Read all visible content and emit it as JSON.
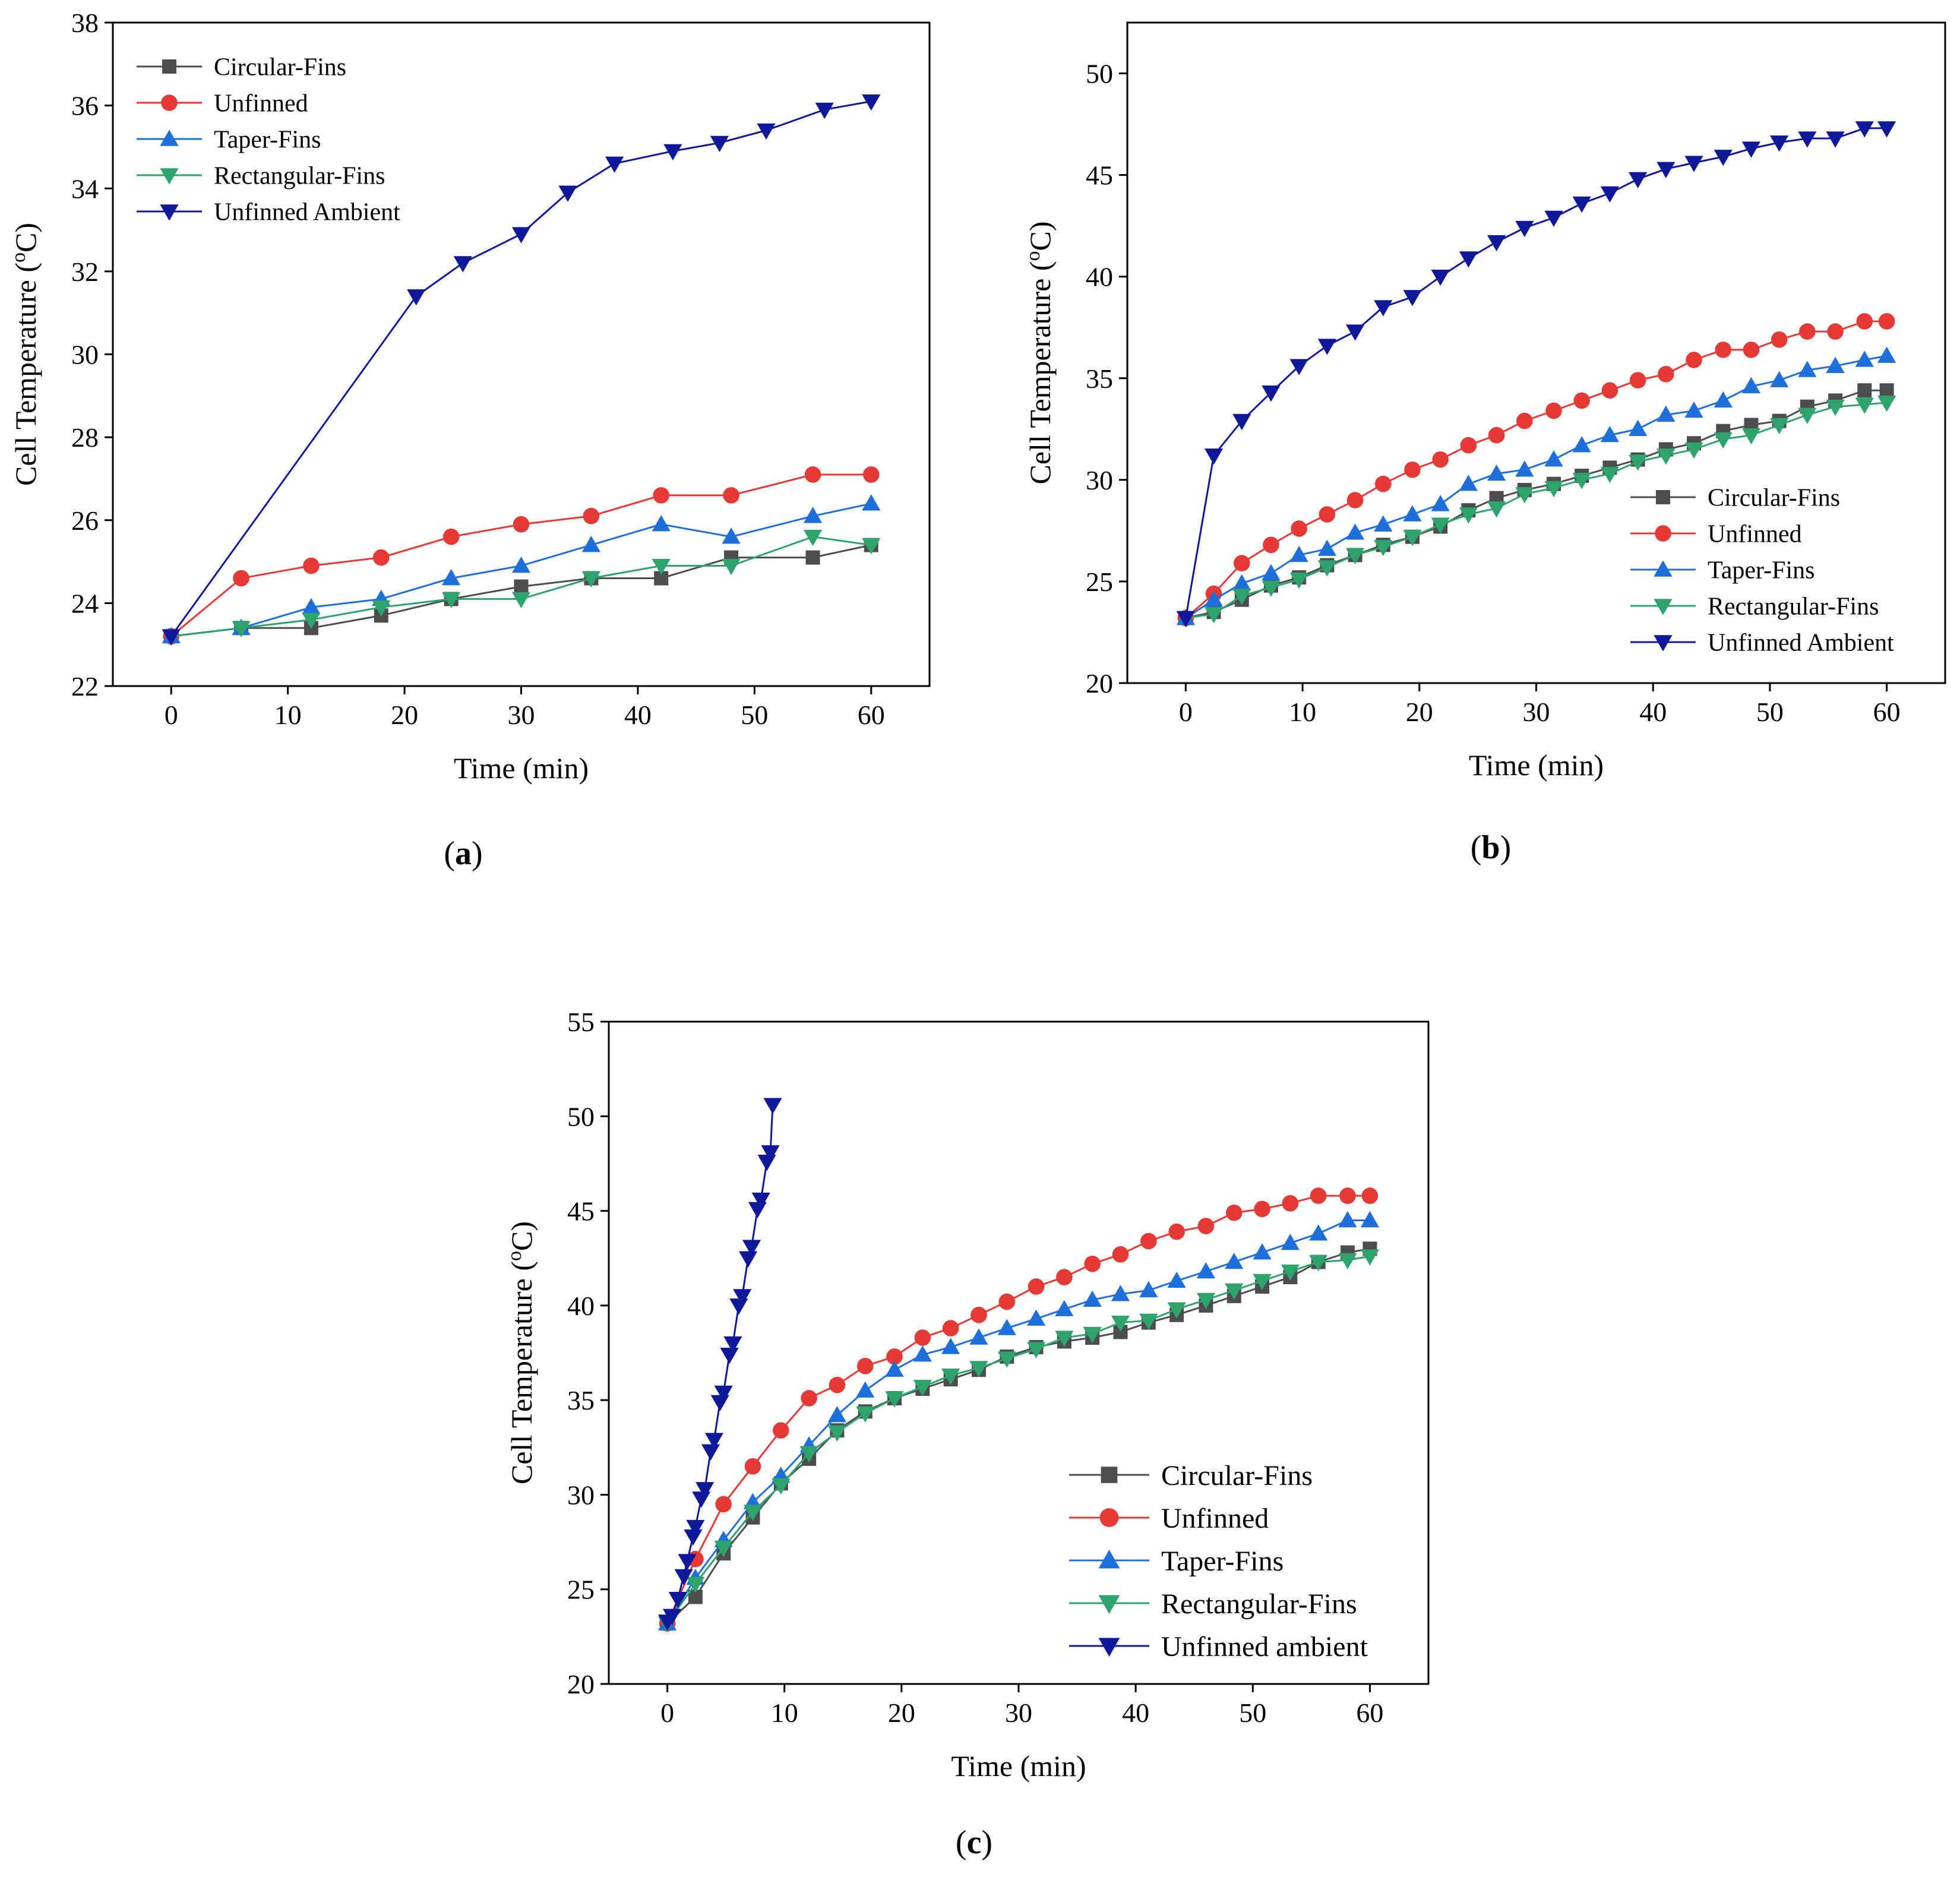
{
  "figure": {
    "series_styles": [
      {
        "name": "Circular-Fins",
        "color": "#4d4d4d",
        "marker": "square"
      },
      {
        "name": "Unfinned",
        "color": "#e53935",
        "marker": "circle"
      },
      {
        "name": "Taper-Fins",
        "color": "#1e6fd9",
        "marker": "triangle-up"
      },
      {
        "name": "Rectangular-Fins",
        "color": "#2ea36b",
        "marker": "triangle-down"
      },
      {
        "name": "Unfinned Ambient",
        "color": "#10189a",
        "marker": "triangle-down"
      }
    ]
  },
  "chart_data": [
    {
      "id": "a",
      "caption_letter": "a",
      "type": "line",
      "xlabel": "Time (min)",
      "ylabel_prefix": "Cell Temperature (",
      "ylabel_sup": "o",
      "ylabel_suffix": "C)",
      "xlim": [
        -5,
        65
      ],
      "ylim": [
        22,
        38
      ],
      "xticks": [
        0,
        10,
        20,
        30,
        40,
        50,
        60
      ],
      "yticks": [
        22,
        24,
        26,
        28,
        30,
        32,
        34,
        36,
        38
      ],
      "legend_position": "top-left",
      "series": [
        {
          "name": "Circular-Fins",
          "x": [
            0,
            6,
            12,
            18,
            24,
            30,
            36,
            42,
            48,
            55,
            60
          ],
          "y": [
            23.2,
            23.4,
            23.4,
            23.7,
            24.1,
            24.4,
            24.6,
            24.6,
            25.1,
            25.1,
            25.4
          ]
        },
        {
          "name": "Unfinned",
          "x": [
            0,
            6,
            12,
            18,
            24,
            30,
            36,
            42,
            48,
            55,
            60
          ],
          "y": [
            23.2,
            24.6,
            24.9,
            25.1,
            25.6,
            25.9,
            26.1,
            26.6,
            26.6,
            27.1,
            27.1
          ]
        },
        {
          "name": "Taper-Fins",
          "x": [
            0,
            6,
            12,
            18,
            24,
            30,
            36,
            42,
            48,
            55,
            60
          ],
          "y": [
            23.2,
            23.4,
            23.9,
            24.1,
            24.6,
            24.9,
            25.4,
            25.9,
            25.6,
            26.1,
            26.4
          ]
        },
        {
          "name": "Rectangular-Fins",
          "x": [
            0,
            6,
            12,
            18,
            24,
            30,
            36,
            42,
            48,
            55,
            60
          ],
          "y": [
            23.2,
            23.4,
            23.6,
            23.9,
            24.1,
            24.1,
            24.6,
            24.9,
            24.9,
            25.6,
            25.4
          ]
        },
        {
          "name": "Unfinned Ambient",
          "x": [
            0,
            21,
            25,
            30,
            34,
            38,
            43,
            47,
            51,
            56,
            60
          ],
          "y": [
            23.2,
            31.4,
            32.2,
            32.9,
            33.9,
            34.6,
            34.9,
            35.1,
            35.4,
            35.9,
            36.1
          ]
        }
      ]
    },
    {
      "id": "b",
      "caption_letter": "b",
      "type": "line",
      "xlabel": "Time (min)",
      "ylabel_prefix": "Cell Temperature (",
      "ylabel_sup": "o",
      "ylabel_suffix": "C)",
      "xlim": [
        -5,
        65
      ],
      "ylim": [
        20,
        52.5
      ],
      "xticks": [
        0,
        10,
        20,
        30,
        40,
        50,
        60
      ],
      "yticks": [
        20,
        25,
        30,
        35,
        40,
        45,
        50
      ],
      "legend_position": "bottom-right",
      "series": [
        {
          "name": "Circular-Fins",
          "x": [
            0,
            2.4,
            4.8,
            7.3,
            9.7,
            12.1,
            14.5,
            16.9,
            19.4,
            21.8,
            24.2,
            26.6,
            29.0,
            31.5,
            33.9,
            36.3,
            38.7,
            41.1,
            43.5,
            46.0,
            48.4,
            50.8,
            53.2,
            55.6,
            58.1,
            60.0
          ],
          "y": [
            23.2,
            23.5,
            24.1,
            24.8,
            25.2,
            25.8,
            26.3,
            26.8,
            27.2,
            27.7,
            28.5,
            29.1,
            29.5,
            29.8,
            30.2,
            30.6,
            31.0,
            31.5,
            31.8,
            32.4,
            32.7,
            32.9,
            33.6,
            33.9,
            34.4,
            34.4
          ]
        },
        {
          "name": "Unfinned",
          "x": [
            0,
            2.4,
            4.8,
            7.3,
            9.7,
            12.1,
            14.5,
            16.9,
            19.4,
            21.8,
            24.2,
            26.6,
            29.0,
            31.5,
            33.9,
            36.3,
            38.7,
            41.1,
            43.5,
            46.0,
            48.4,
            50.8,
            53.2,
            55.6,
            58.1,
            60.0
          ],
          "y": [
            23.2,
            24.4,
            25.9,
            26.8,
            27.6,
            28.3,
            29.0,
            29.8,
            30.5,
            31.0,
            31.7,
            32.2,
            32.9,
            33.4,
            33.9,
            34.4,
            34.9,
            35.2,
            35.9,
            36.4,
            36.4,
            36.9,
            37.3,
            37.3,
            37.8,
            37.8
          ]
        },
        {
          "name": "Taper-Fins",
          "x": [
            0,
            2.4,
            4.8,
            7.3,
            9.7,
            12.1,
            14.5,
            16.9,
            19.4,
            21.8,
            24.2,
            26.6,
            29.0,
            31.5,
            33.9,
            36.3,
            38.7,
            41.1,
            43.5,
            46.0,
            48.4,
            50.8,
            53.2,
            55.6,
            58.1,
            60.0
          ],
          "y": [
            23.2,
            24.1,
            24.9,
            25.4,
            26.3,
            26.6,
            27.4,
            27.8,
            28.3,
            28.8,
            29.8,
            30.3,
            30.5,
            31.0,
            31.7,
            32.2,
            32.5,
            33.2,
            33.4,
            33.9,
            34.6,
            34.9,
            35.4,
            35.6,
            35.9,
            36.1
          ]
        },
        {
          "name": "Rectangular-Fins",
          "x": [
            0,
            2.4,
            4.8,
            7.3,
            9.7,
            12.1,
            14.5,
            16.9,
            19.4,
            21.8,
            24.2,
            26.6,
            29.0,
            31.5,
            33.9,
            36.3,
            38.7,
            41.1,
            43.5,
            46.0,
            48.4,
            50.8,
            53.2,
            55.6,
            58.1,
            60.0
          ],
          "y": [
            23.2,
            23.4,
            24.3,
            24.7,
            25.1,
            25.7,
            26.3,
            26.7,
            27.2,
            27.8,
            28.3,
            28.6,
            29.3,
            29.6,
            30.0,
            30.3,
            30.9,
            31.2,
            31.5,
            32.0,
            32.2,
            32.7,
            33.2,
            33.6,
            33.7,
            33.8
          ]
        },
        {
          "name": "Unfinned Ambient",
          "x": [
            0,
            2.4,
            4.8,
            7.3,
            9.7,
            12.1,
            14.5,
            16.9,
            19.4,
            21.8,
            24.2,
            26.6,
            29.0,
            31.5,
            33.9,
            36.3,
            38.7,
            41.1,
            43.5,
            46.0,
            48.4,
            50.8,
            53.2,
            55.6,
            58.1,
            60.0
          ],
          "y": [
            23.2,
            31.2,
            32.9,
            34.3,
            35.6,
            36.6,
            37.3,
            38.5,
            39.0,
            40.0,
            40.9,
            41.7,
            42.4,
            42.9,
            43.6,
            44.1,
            44.8,
            45.3,
            45.6,
            45.9,
            46.3,
            46.6,
            46.8,
            46.8,
            47.3,
            47.3
          ]
        }
      ]
    },
    {
      "id": "c",
      "caption_letter": "c",
      "type": "line",
      "xlabel": "Time (min)",
      "ylabel_prefix": "Cell Temperature (",
      "ylabel_sup": "o",
      "ylabel_suffix": "C)",
      "xlim": [
        -5,
        65
      ],
      "ylim": [
        20,
        55
      ],
      "xticks": [
        0,
        10,
        20,
        30,
        40,
        50,
        60
      ],
      "yticks": [
        20,
        25,
        30,
        35,
        40,
        45,
        50,
        55
      ],
      "legend_position": "bottom-right",
      "series": [
        {
          "name": "Circular-Fins",
          "x": [
            0,
            2.4,
            4.8,
            7.3,
            9.7,
            12.1,
            14.5,
            16.9,
            19.4,
            21.8,
            24.2,
            26.6,
            29.0,
            31.5,
            33.9,
            36.3,
            38.7,
            41.1,
            43.5,
            46.0,
            48.4,
            50.8,
            53.2,
            55.6,
            58.1,
            60.0
          ],
          "y": [
            23.2,
            24.6,
            26.9,
            28.8,
            30.6,
            31.9,
            33.4,
            34.4,
            35.1,
            35.6,
            36.1,
            36.6,
            37.3,
            37.8,
            38.1,
            38.3,
            38.6,
            39.1,
            39.5,
            40.0,
            40.5,
            41.0,
            41.5,
            42.3,
            42.8,
            43.0
          ]
        },
        {
          "name": "Unfinned",
          "x": [
            0,
            2.4,
            4.8,
            7.3,
            9.7,
            12.1,
            14.5,
            16.9,
            19.4,
            21.8,
            24.2,
            26.6,
            29.0,
            31.5,
            33.9,
            36.3,
            38.7,
            41.1,
            43.5,
            46.0,
            48.4,
            50.8,
            53.2,
            55.6,
            58.1,
            60.0
          ],
          "y": [
            23.2,
            26.6,
            29.5,
            31.5,
            33.4,
            35.1,
            35.8,
            36.8,
            37.3,
            38.3,
            38.8,
            39.5,
            40.2,
            41.0,
            41.5,
            42.2,
            42.7,
            43.4,
            43.9,
            44.2,
            44.9,
            45.1,
            45.4,
            45.8,
            45.8,
            45.8
          ]
        },
        {
          "name": "Taper-Fins",
          "x": [
            0,
            2.4,
            4.8,
            7.3,
            9.7,
            12.1,
            14.5,
            16.9,
            19.4,
            21.8,
            24.2,
            26.6,
            29.0,
            31.5,
            33.9,
            36.3,
            38.7,
            41.1,
            43.5,
            46.0,
            48.4,
            50.8,
            53.2,
            55.6,
            58.1,
            60.0
          ],
          "y": [
            23.2,
            25.6,
            27.6,
            29.6,
            31.0,
            32.6,
            34.2,
            35.5,
            36.6,
            37.4,
            37.8,
            38.3,
            38.8,
            39.3,
            39.8,
            40.3,
            40.6,
            40.8,
            41.3,
            41.8,
            42.3,
            42.8,
            43.3,
            43.8,
            44.5,
            44.5
          ]
        },
        {
          "name": "Rectangular-Fins",
          "x": [
            0,
            2.4,
            4.8,
            7.3,
            9.7,
            12.1,
            14.5,
            16.9,
            19.4,
            21.8,
            24.2,
            26.6,
            29.0,
            31.5,
            33.9,
            36.3,
            38.7,
            41.1,
            43.5,
            46.0,
            48.4,
            50.8,
            53.2,
            55.6,
            58.1,
            60.0
          ],
          "y": [
            23.2,
            25.3,
            27.2,
            29.1,
            30.5,
            32.2,
            33.3,
            34.3,
            35.1,
            35.7,
            36.3,
            36.7,
            37.2,
            37.7,
            38.3,
            38.5,
            39.1,
            39.2,
            39.8,
            40.3,
            40.8,
            41.3,
            41.8,
            42.3,
            42.4,
            42.6
          ]
        },
        {
          "name": "Unfinned ambient",
          "x": [
            0,
            0.4,
            0.9,
            1.4,
            1.7,
            2.2,
            2.4,
            2.9,
            3.2,
            3.7,
            4.0,
            4.5,
            4.8,
            5.3,
            5.6,
            6.1,
            6.4,
            6.9,
            7.2,
            7.7,
            8.0,
            8.5,
            8.8,
            9.0
          ],
          "y": [
            23.3,
            23.6,
            24.5,
            25.7,
            26.5,
            27.8,
            28.3,
            29.8,
            30.3,
            32.3,
            32.9,
            34.9,
            35.4,
            37.4,
            38.0,
            40.0,
            40.5,
            42.5,
            43.1,
            45.1,
            45.6,
            47.6,
            48.1,
            50.6
          ]
        }
      ]
    }
  ]
}
